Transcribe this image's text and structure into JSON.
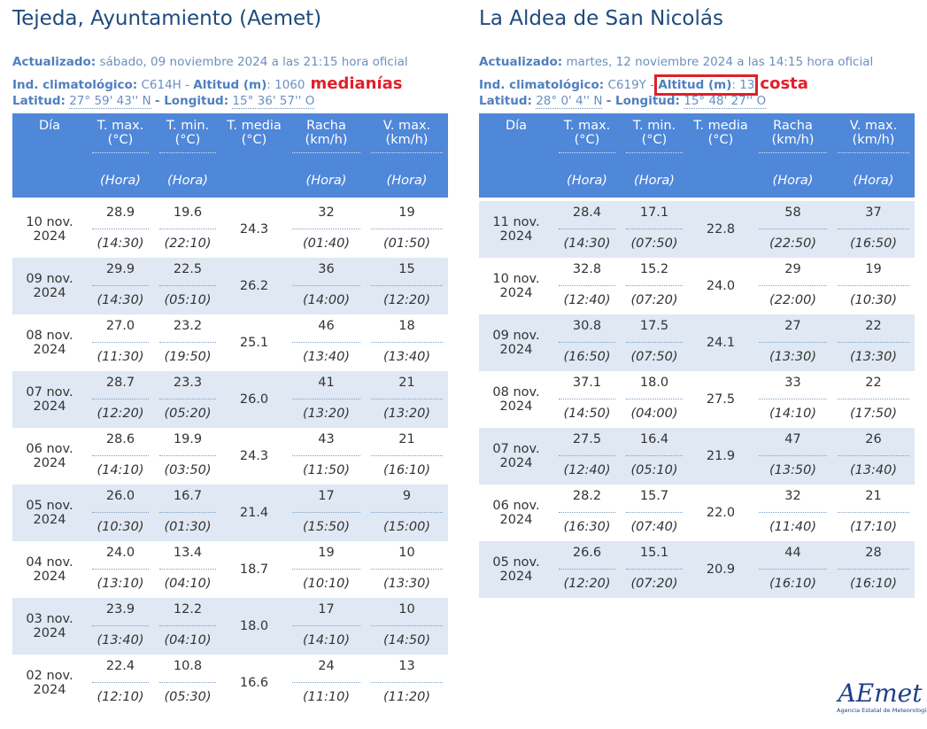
{
  "columns": [
    {
      "label": "Día"
    },
    {
      "label": "T. max. (°C)",
      "sub": "(Hora)"
    },
    {
      "label": "T. min. (°C)",
      "sub": "(Hora)"
    },
    {
      "label": "T. media (°C)"
    },
    {
      "label": "Racha (km/h)",
      "sub": "(Hora)"
    },
    {
      "label": "V. max. (km/h)",
      "sub": "(Hora)"
    }
  ],
  "panels": [
    {
      "title": "Tejeda, Ayuntamiento (Aemet)",
      "meta": {
        "updated_label": "Actualizado:",
        "updated": "sábado, 09 noviembre 2024 a las 21:15 hora oficial",
        "code_label": "Ind. climatológico:",
        "code": "C614H -",
        "alt_label": "Altitud (m)",
        "alt": ": 1060",
        "note": "medianías",
        "lat_label": "Latitud:",
        "lat": "27° 59' 43'' N",
        "lon_label": "- Longitud:",
        "lon": "15° 36' 57'' O"
      },
      "rows": [
        [
          "10 nov. 2024",
          "28.9",
          "(14:30)",
          "19.6",
          "(22:10)",
          "24.3",
          "32",
          "(01:40)",
          "19",
          "(01:50)"
        ],
        [
          "09 nov. 2024",
          "29.9",
          "(14:30)",
          "22.5",
          "(05:10)",
          "26.2",
          "36",
          "(14:00)",
          "15",
          "(12:20)"
        ],
        [
          "08 nov. 2024",
          "27.0",
          "(11:30)",
          "23.2",
          "(19:50)",
          "25.1",
          "46",
          "(13:40)",
          "18",
          "(13:40)"
        ],
        [
          "07 nov. 2024",
          "28.7",
          "(12:20)",
          "23.3",
          "(05:20)",
          "26.0",
          "41",
          "(13:20)",
          "21",
          "(13:20)"
        ],
        [
          "06 nov. 2024",
          "28.6",
          "(14:10)",
          "19.9",
          "(03:50)",
          "24.3",
          "43",
          "(11:50)",
          "21",
          "(16:10)"
        ],
        [
          "05 nov. 2024",
          "26.0",
          "(10:30)",
          "16.7",
          "(01:30)",
          "21.4",
          "17",
          "(15:50)",
          "9",
          "(15:00)"
        ],
        [
          "04 nov. 2024",
          "24.0",
          "(13:10)",
          "13.4",
          "(04:10)",
          "18.7",
          "19",
          "(10:10)",
          "10",
          "(13:30)"
        ],
        [
          "03 nov. 2024",
          "23.9",
          "(13:40)",
          "12.2",
          "(04:10)",
          "18.0",
          "17",
          "(14:10)",
          "10",
          "(14:50)"
        ],
        [
          "02 nov. 2024",
          "22.4",
          "(12:10)",
          "10.8",
          "(05:30)",
          "16.6",
          "24",
          "(11:10)",
          "13",
          "(11:20)"
        ]
      ]
    },
    {
      "title": "La Aldea de San Nicolás",
      "meta": {
        "updated_label": "Actualizado:",
        "updated": "martes, 12 noviembre 2024 a las 14:15 hora oficial",
        "code_label": "Ind. climatológico:",
        "code": "C619Y -",
        "alt_label": "Altitud (m)",
        "alt": ": 13",
        "note": "costa",
        "lat_label": "Latitud:",
        "lat": "28° 0' 4'' N",
        "lon_label": "- Longitud:",
        "lon": "15° 48' 27'' O"
      },
      "rows": [
        [
          "11 nov. 2024",
          "28.4",
          "(14:30)",
          "17.1",
          "(07:50)",
          "22.8",
          "58",
          "(22:50)",
          "37",
          "(16:50)"
        ],
        [
          "10 nov. 2024",
          "32.8",
          "(12:40)",
          "15.2",
          "(07:20)",
          "24.0",
          "29",
          "(22:00)",
          "19",
          "(10:30)"
        ],
        [
          "09 nov. 2024",
          "30.8",
          "(16:50)",
          "17.5",
          "(07:50)",
          "24.1",
          "27",
          "(13:30)",
          "22",
          "(13:30)"
        ],
        [
          "08 nov. 2024",
          "37.1",
          "(14:50)",
          "18.0",
          "(04:00)",
          "27.5",
          "33",
          "(14:10)",
          "22",
          "(17:50)"
        ],
        [
          "07 nov. 2024",
          "27.5",
          "(12:40)",
          "16.4",
          "(05:10)",
          "21.9",
          "47",
          "(13:50)",
          "26",
          "(13:40)"
        ],
        [
          "06 nov. 2024",
          "28.2",
          "(16:30)",
          "15.7",
          "(07:40)",
          "22.0",
          "32",
          "(11:40)",
          "21",
          "(17:10)"
        ],
        [
          "05 nov. 2024",
          "26.6",
          "(12:20)",
          "15.1",
          "(07:20)",
          "20.9",
          "44",
          "(16:10)",
          "28",
          "(16:10)"
        ]
      ]
    }
  ],
  "logo": {
    "name": "AEmet",
    "subtitle": "Agencia Estatal de Meteorología"
  }
}
